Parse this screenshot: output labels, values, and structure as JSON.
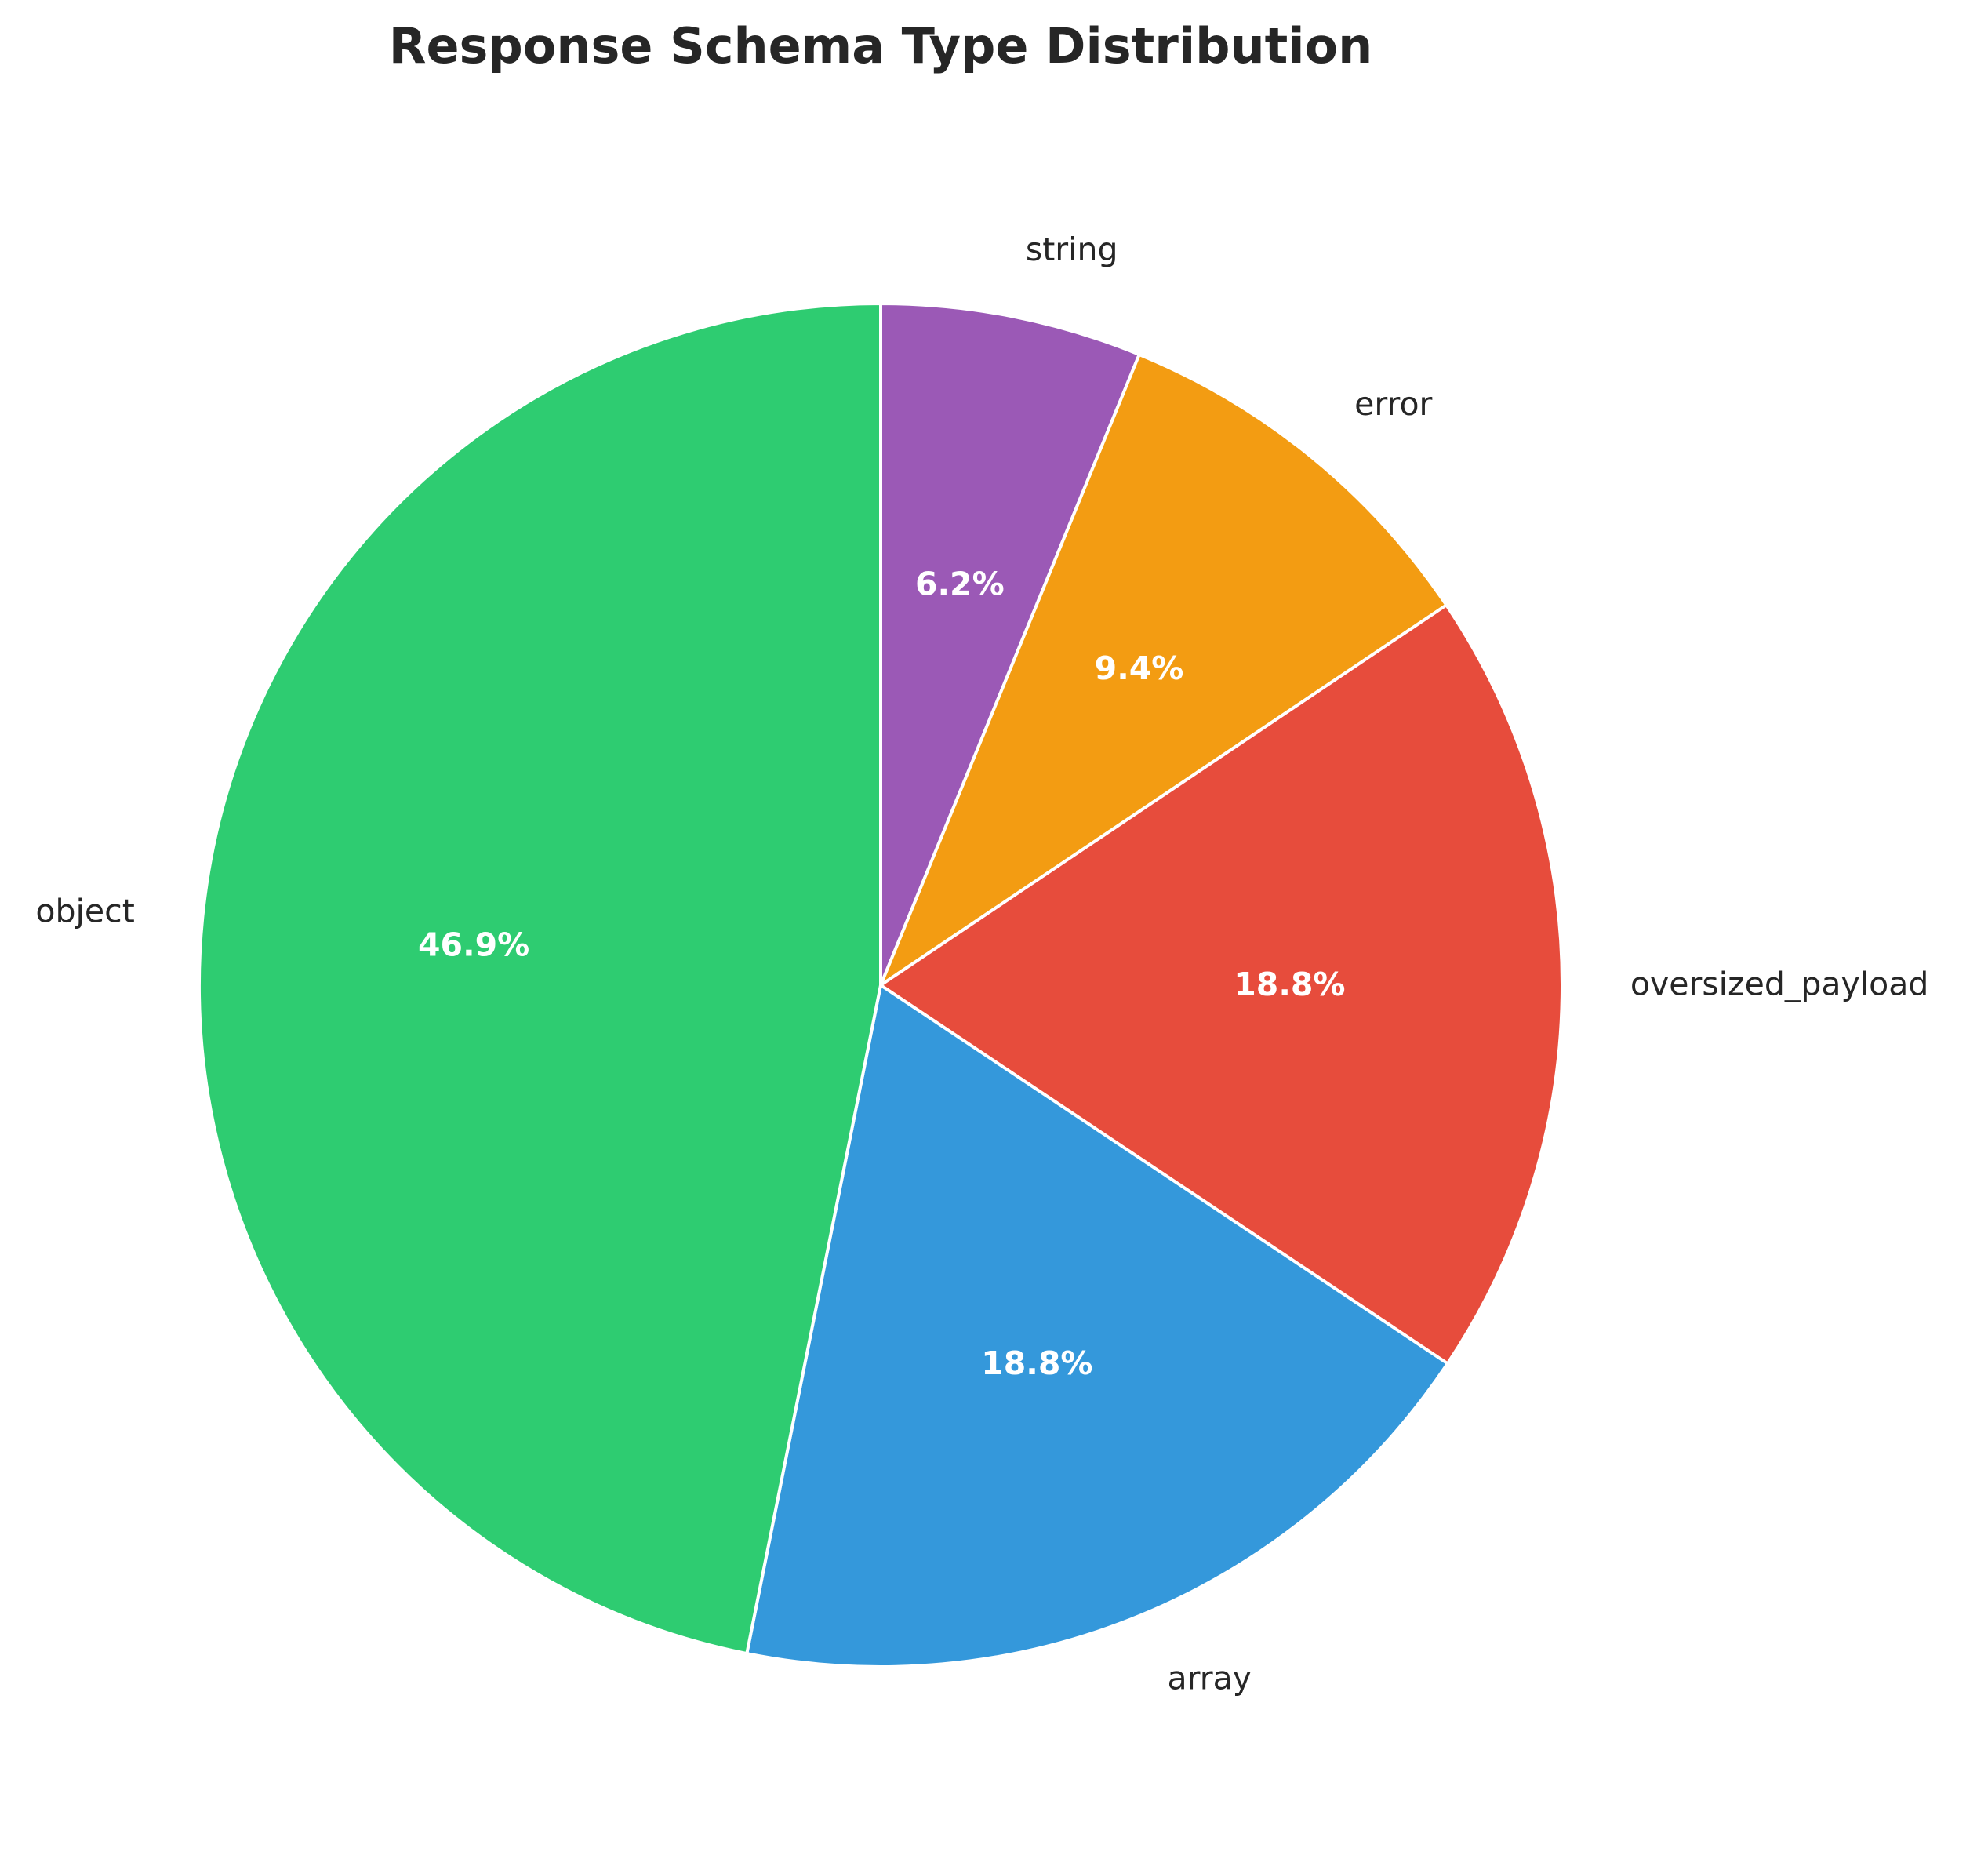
{
  "chart_data": {
    "type": "pie",
    "title": "Response Schema Type Distribution",
    "start_angle_deg": 90,
    "direction": "clockwise",
    "slices": [
      {
        "label": "string",
        "value": 6.2,
        "pct_label": "6.2%",
        "color": "#9b59b6"
      },
      {
        "label": "error",
        "value": 9.4,
        "pct_label": "9.4%",
        "color": "#f39c12"
      },
      {
        "label": "oversized_payload",
        "value": 18.8,
        "pct_label": "18.8%",
        "color": "#e74c3c"
      },
      {
        "label": "array",
        "value": 18.8,
        "pct_label": "18.8%",
        "color": "#3498db"
      },
      {
        "label": "object",
        "value": 46.9,
        "pct_label": "46.9%",
        "color": "#2ecc71"
      }
    ]
  }
}
